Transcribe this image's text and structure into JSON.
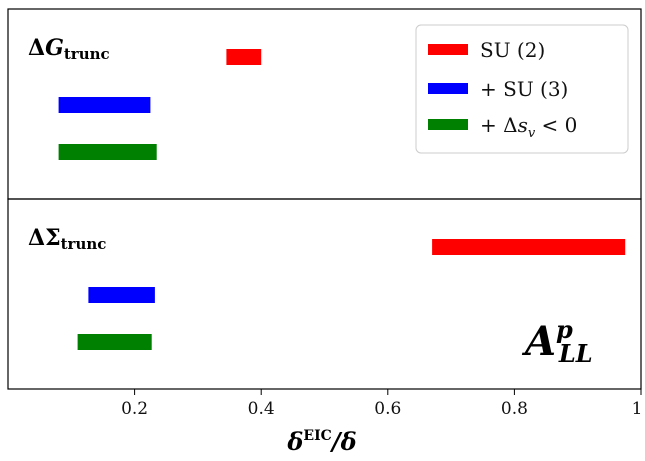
{
  "chart_data": {
    "type": "bar",
    "orientation": "horizontal-range",
    "xlabel": "δEIC/δ",
    "xlabel_parts": {
      "base": "δ",
      "sup": "EIC",
      "rest": "/δ"
    },
    "xlim": [
      0.0,
      1.0
    ],
    "x_ticks": [
      0.2,
      0.4,
      0.6,
      0.8,
      1.0
    ],
    "x_tick_labels": [
      "0.2",
      "0.4",
      "0.6",
      "0.8",
      "1"
    ],
    "grid": false,
    "legend_position": "top-right",
    "legend": [
      {
        "label": "SU (2)",
        "color": "#ff0000"
      },
      {
        "label": "+ SU (3)",
        "color": "#0000ff"
      },
      {
        "label": "+ Δs_v < 0",
        "color": "#008000"
      }
    ],
    "legend_labels_parts": [
      {
        "pre": "SU (2)",
        "var": "",
        "sub": "",
        "post": ""
      },
      {
        "pre": "+ SU (3)",
        "var": "",
        "sub": "",
        "post": ""
      },
      {
        "pre": "+ Δ",
        "var": "s",
        "sub": "v",
        "post": " < 0"
      }
    ],
    "panels": [
      {
        "label": "ΔG_trunc",
        "label_parts": {
          "delta": "Δ",
          "var": "G",
          "sub": "trunc"
        },
        "series": [
          {
            "name": "SU (2)",
            "color": "#ff0000",
            "range": [
              0.345,
              0.4
            ]
          },
          {
            "name": "+ SU (3)",
            "color": "#0000ff",
            "range": [
              0.08,
              0.225
            ]
          },
          {
            "name": "+ Δs_v < 0",
            "color": "#008000",
            "range": [
              0.08,
              0.235
            ]
          }
        ]
      },
      {
        "label": "ΔΣ_trunc",
        "label_parts": {
          "delta": "ΔΣ",
          "var": "",
          "sub": "trunc"
        },
        "series": [
          {
            "name": "SU (2)",
            "color": "#ff0000",
            "range": [
              0.67,
              0.975
            ]
          },
          {
            "name": "+ SU (3)",
            "color": "#0000ff",
            "range": [
              0.127,
              0.232
            ]
          },
          {
            "name": "+ Δs_v < 0",
            "color": "#008000",
            "range": [
              0.11,
              0.227
            ]
          }
        ]
      }
    ],
    "annotation": "A_LL^p",
    "annotation_parts": {
      "base": "A",
      "sup": "p",
      "sub": "LL"
    }
  }
}
